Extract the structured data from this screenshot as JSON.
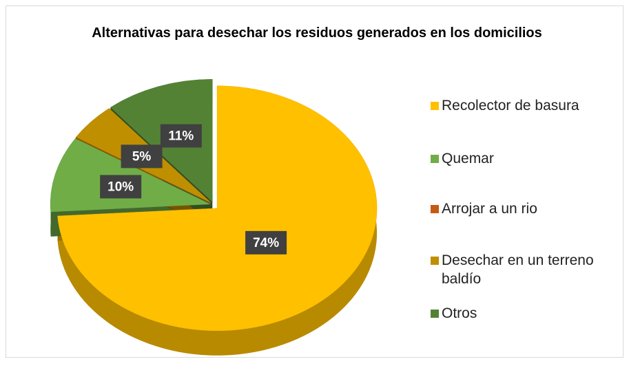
{
  "chart_data": {
    "type": "pie",
    "title": "Alternativas para desechar los residuos generados en los domicilios",
    "categories": [
      "Recolector de basura",
      "Quemar",
      "Arrojar a un rio",
      "Desechar en un terreno baldío",
      "Otros"
    ],
    "values": [
      74,
      10,
      0,
      5,
      11
    ],
    "value_labels": [
      "74%",
      "10%",
      null,
      "5%",
      "11%"
    ],
    "colors": [
      "#ffc000",
      "#70ad47",
      "#c55a11",
      "#bf8f00",
      "#548235"
    ],
    "legend": "right"
  }
}
